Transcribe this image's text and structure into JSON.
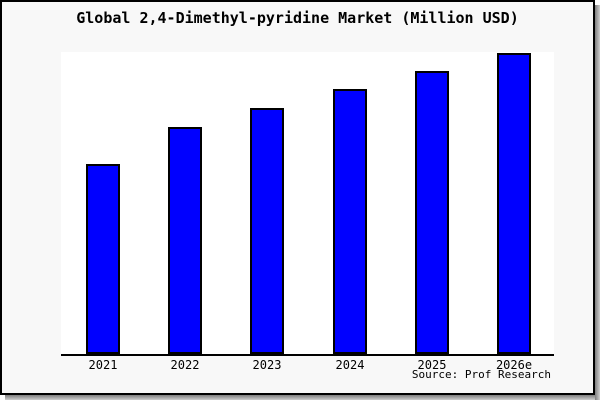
{
  "chart_data": {
    "type": "bar",
    "title": "Global 2,4-Dimethyl-pyridine Market (Million USD)",
    "categories": [
      "2021",
      "2022",
      "2023",
      "2024",
      "2025",
      "2026e"
    ],
    "values": [
      190,
      227,
      246,
      265,
      283,
      301
    ],
    "value_scale_note": "y-axis has no tick labels; values are relative bar heights in pixels",
    "xlabel": "",
    "ylabel": "",
    "ylim": [
      0,
      302
    ],
    "grid": "off",
    "legend": "none",
    "source_note": "Source: Prof Research",
    "bar_color": "#0000ff",
    "bar_border_color": "#000000"
  },
  "colors": {
    "figure_bg": "#f8f8f8",
    "plot_bg": "#ffffff",
    "frame_border": "#000000",
    "title_color": "#000000",
    "shadow": "#7d7d7d"
  }
}
